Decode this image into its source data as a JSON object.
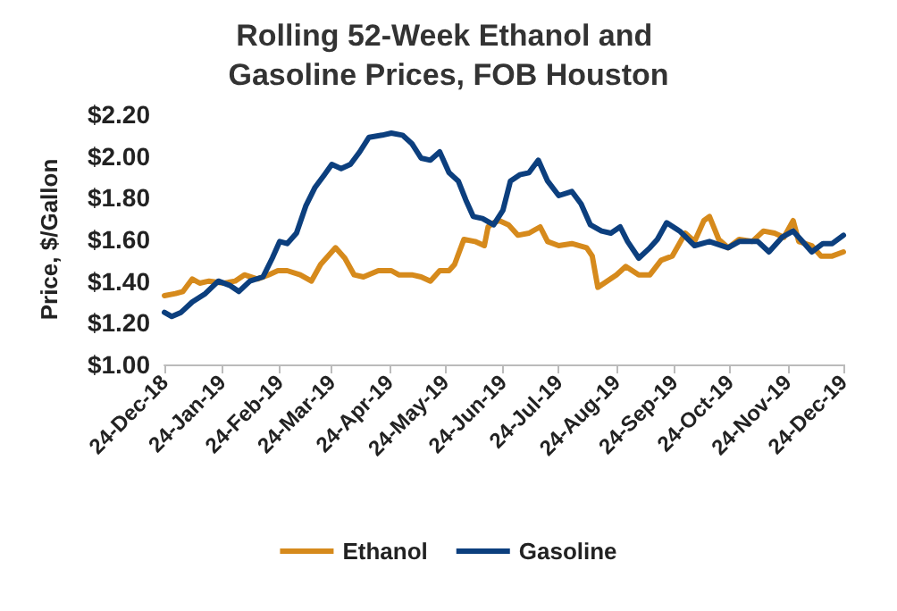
{
  "chart_data": {
    "type": "line",
    "title": "Rolling 52-Week Ethanol and Gasoline Prices, FOB Houston",
    "ylabel": "Price, $/Gallon",
    "series": [
      {
        "name": "Ethanol",
        "color": "#d68a1c",
        "x": [
          "2018-12-24",
          "2018-12-30",
          "2019-01-03",
          "2019-01-08",
          "2019-01-12",
          "2019-01-17",
          "2019-01-25",
          "2019-01-31",
          "2019-02-05",
          "2019-02-12",
          "2019-02-18",
          "2019-02-23",
          "2019-02-28",
          "2019-03-07",
          "2019-03-13",
          "2019-03-18",
          "2019-03-26",
          "2019-03-31",
          "2019-04-05",
          "2019-04-10",
          "2019-04-18",
          "2019-04-25",
          "2019-04-29",
          "2019-05-06",
          "2019-05-11",
          "2019-05-16",
          "2019-05-21",
          "2019-05-26",
          "2019-05-29",
          "2019-06-03",
          "2019-06-09",
          "2019-06-14",
          "2019-06-16",
          "2019-06-19",
          "2019-06-22",
          "2019-06-27",
          "2019-07-02",
          "2019-07-08",
          "2019-07-14",
          "2019-07-18",
          "2019-07-24",
          "2019-07-31",
          "2019-08-08",
          "2019-08-11",
          "2019-08-14",
          "2019-08-19",
          "2019-08-24",
          "2019-08-29",
          "2019-09-05",
          "2019-09-11",
          "2019-09-17",
          "2019-09-23",
          "2019-09-30",
          "2019-10-05",
          "2019-10-10",
          "2019-10-13",
          "2019-10-18",
          "2019-10-23",
          "2019-10-29",
          "2019-11-05",
          "2019-11-11",
          "2019-11-17",
          "2019-11-22",
          "2019-11-27",
          "2019-11-30",
          "2019-12-07",
          "2019-12-12",
          "2019-12-18",
          "2019-12-24"
        ],
        "values": [
          1.33,
          1.34,
          1.35,
          1.41,
          1.39,
          1.4,
          1.39,
          1.4,
          1.43,
          1.41,
          1.43,
          1.45,
          1.45,
          1.43,
          1.4,
          1.48,
          1.56,
          1.51,
          1.43,
          1.42,
          1.45,
          1.45,
          1.43,
          1.43,
          1.42,
          1.4,
          1.45,
          1.45,
          1.48,
          1.6,
          1.59,
          1.57,
          1.66,
          1.68,
          1.69,
          1.67,
          1.62,
          1.63,
          1.66,
          1.59,
          1.57,
          1.58,
          1.56,
          1.52,
          1.37,
          1.4,
          1.43,
          1.47,
          1.43,
          1.43,
          1.5,
          1.52,
          1.63,
          1.59,
          1.69,
          1.71,
          1.6,
          1.56,
          1.6,
          1.59,
          1.64,
          1.63,
          1.61,
          1.69,
          1.59,
          1.57,
          1.52,
          1.52,
          1.54
        ]
      },
      {
        "name": "Gasoline",
        "color": "#0c3f7e",
        "x": [
          "2018-12-24",
          "2018-12-28",
          "2019-01-02",
          "2019-01-08",
          "2019-01-15",
          "2019-01-22",
          "2019-01-28",
          "2019-02-02",
          "2019-02-08",
          "2019-02-15",
          "2019-02-20",
          "2019-02-24",
          "2019-02-28",
          "2019-03-05",
          "2019-03-10",
          "2019-03-15",
          "2019-03-20",
          "2019-03-24",
          "2019-03-29",
          "2019-04-03",
          "2019-04-08",
          "2019-04-13",
          "2019-04-20",
          "2019-04-25",
          "2019-05-01",
          "2019-05-06",
          "2019-05-11",
          "2019-05-16",
          "2019-05-21",
          "2019-05-26",
          "2019-05-31",
          "2019-06-04",
          "2019-06-08",
          "2019-06-13",
          "2019-06-19",
          "2019-06-24",
          "2019-06-28",
          "2019-07-03",
          "2019-07-08",
          "2019-07-13",
          "2019-07-18",
          "2019-07-24",
          "2019-07-31",
          "2019-08-05",
          "2019-08-10",
          "2019-08-16",
          "2019-08-21",
          "2019-08-26",
          "2019-08-30",
          "2019-09-05",
          "2019-09-11",
          "2019-09-15",
          "2019-09-20",
          "2019-09-27",
          "2019-10-05",
          "2019-10-13",
          "2019-10-23",
          "2019-10-29",
          "2019-11-08",
          "2019-11-14",
          "2019-11-21",
          "2019-11-27",
          "2019-12-02",
          "2019-12-07",
          "2019-12-13",
          "2019-12-18",
          "2019-12-24"
        ],
        "values": [
          1.25,
          1.23,
          1.25,
          1.3,
          1.34,
          1.4,
          1.38,
          1.35,
          1.4,
          1.42,
          1.51,
          1.59,
          1.58,
          1.63,
          1.76,
          1.85,
          1.91,
          1.96,
          1.94,
          1.96,
          2.02,
          2.09,
          2.1,
          2.11,
          2.1,
          2.06,
          1.99,
          1.98,
          2.02,
          1.92,
          1.88,
          1.79,
          1.71,
          1.7,
          1.67,
          1.74,
          1.88,
          1.91,
          1.92,
          1.98,
          1.88,
          1.81,
          1.83,
          1.77,
          1.67,
          1.64,
          1.63,
          1.66,
          1.59,
          1.51,
          1.56,
          1.6,
          1.68,
          1.64,
          1.57,
          1.59,
          1.56,
          1.59,
          1.59,
          1.54,
          1.61,
          1.64,
          1.59,
          1.54,
          1.58,
          1.58,
          1.62
        ]
      }
    ],
    "xlim": [
      "2018-12-24",
      "2019-12-24"
    ],
    "xticks": [
      {
        "value": "2018-12-24",
        "label": "24-Dec-18"
      },
      {
        "value": "2019-01-24",
        "label": "24-Jan-19"
      },
      {
        "value": "2019-02-24",
        "label": "24-Feb-19"
      },
      {
        "value": "2019-03-24",
        "label": "24-Mar-19"
      },
      {
        "value": "2019-04-24",
        "label": "24-Apr-19"
      },
      {
        "value": "2019-05-24",
        "label": "24-May-19"
      },
      {
        "value": "2019-06-24",
        "label": "24-Jun-19"
      },
      {
        "value": "2019-07-24",
        "label": "24-Jul-19"
      },
      {
        "value": "2019-08-24",
        "label": "24-Aug-19"
      },
      {
        "value": "2019-09-24",
        "label": "24-Sep-19"
      },
      {
        "value": "2019-10-24",
        "label": "24-Oct-19"
      },
      {
        "value": "2019-11-24",
        "label": "24-Nov-19"
      },
      {
        "value": "2019-12-24",
        "label": "24-Dec-19"
      }
    ],
    "ylim": [
      1.0,
      2.2
    ],
    "yticks": [
      {
        "value": 1.0,
        "label": "$1.00"
      },
      {
        "value": 1.2,
        "label": "$1.20"
      },
      {
        "value": 1.4,
        "label": "$1.40"
      },
      {
        "value": 1.6,
        "label": "$1.60"
      },
      {
        "value": 1.8,
        "label": "$1.80"
      },
      {
        "value": 2.0,
        "label": "$2.00"
      },
      {
        "value": 2.2,
        "label": "$2.20"
      }
    ],
    "grid": false,
    "legend": "bottom",
    "marker": "none",
    "line_style": "solid"
  }
}
